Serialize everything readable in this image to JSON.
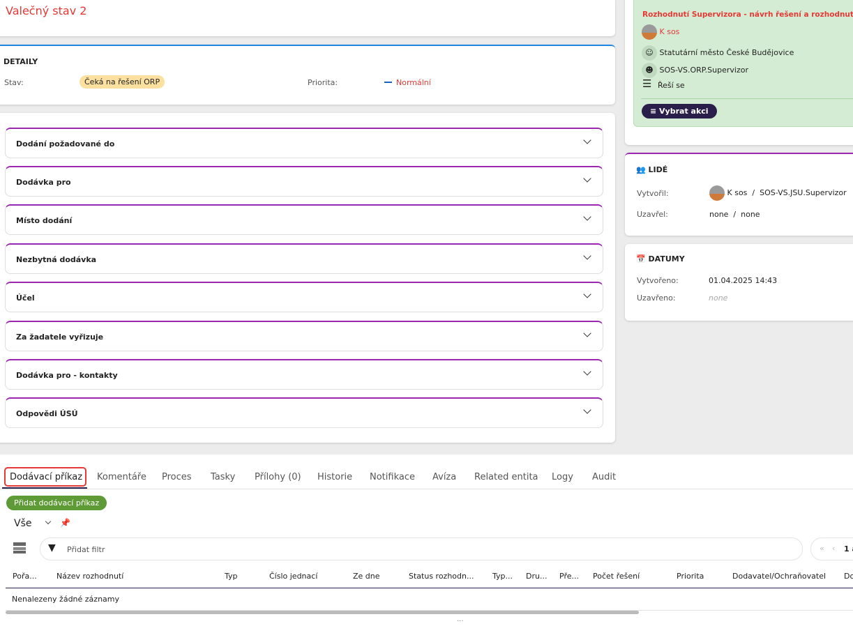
{
  "header": {
    "title": "Valečný stav 2"
  },
  "details": {
    "heading": "DETAILY",
    "stav_label": "Stav:",
    "stav_value": "Čeká na řešení ORP",
    "priorita_label": "Priorita:",
    "priorita_value": "Normální"
  },
  "accordions": [
    "Dodání požadované do",
    "Dodávka pro",
    "Místo dodání",
    "Nezbytná dodávka",
    "Účel",
    "Za žadatele vyřizuje",
    "Dodávka pro - kontakty",
    "Odpovědi ÚSÚ"
  ],
  "task": {
    "title": "Rozhodnutí Supervizora - návrh řešení a rozhodnutí",
    "user": "K sos",
    "org": "Statutární město České Budějovice",
    "role": "SOS-VS.ORP.Supervizor",
    "status": "Řeší se",
    "action_button": "Vybrat akci"
  },
  "people": {
    "heading": "LIDÉ",
    "created_label": "Vytvořil:",
    "created_user": "K sos",
    "created_sep": "/",
    "created_role": "SOS-VS.JSU.Supervizor",
    "closed_label": "Uzavřel:",
    "closed_value": "none  /  none"
  },
  "dates": {
    "heading": "DATUMY",
    "created_label": "Vytvořeno:",
    "created_value": "01.04.2025 14:43",
    "closed_label": "Uzavřeno:",
    "closed_value": "none"
  },
  "tabs": [
    "Dodávací příkaz",
    "Komentáře",
    "Proces",
    "Tasky",
    "Přílohy (0)",
    "Historie",
    "Notifikace",
    "Avíza",
    "Related entita",
    "Logy",
    "Audit"
  ],
  "table": {
    "add_button": "Přidat dodávací příkaz",
    "view": "Vše",
    "filter_placeholder": "Přidat filtr",
    "pager_page": "1 a",
    "columns": [
      "Pořa...",
      "Název rozhodnutí",
      "Typ",
      "Číslo jednací",
      "Ze dne",
      "Status rozhodn...",
      "Typ...",
      "Dru...",
      "Pře...",
      "Počet řešení",
      "Priorita",
      "Dodavatel/Ochraňovatel",
      "Do"
    ],
    "empty": "Nenalezeny žádné záznamy"
  },
  "colors": {
    "accent_red": "#e53935",
    "purple": "#9c27b0",
    "blue": "#1e88e5",
    "green_button": "#5e9a35",
    "dark_button": "#2a1f4a"
  }
}
